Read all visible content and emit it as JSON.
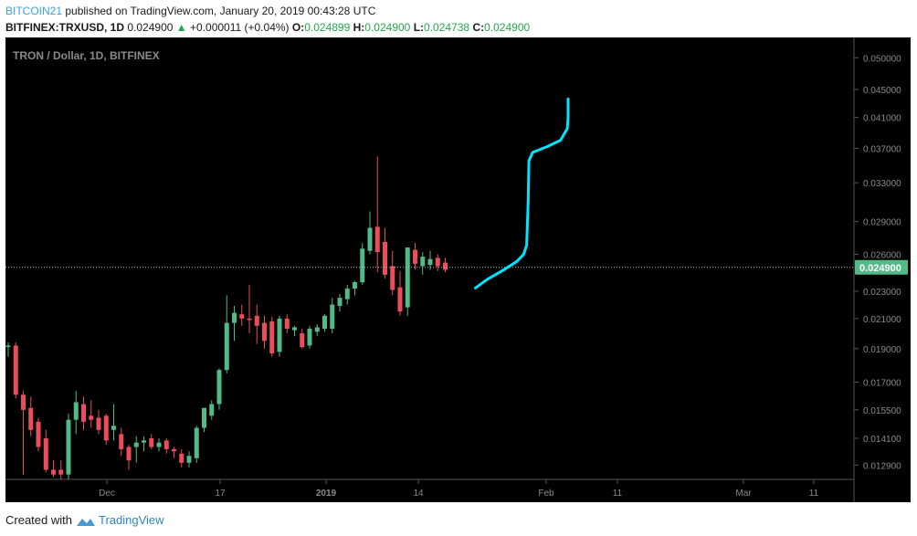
{
  "header": {
    "author": "BITCOIN21",
    "published_text": "published on TradingView.com, January 20, 2019 00:43:28 UTC",
    "symbol": "BITFINEX:TRXUSD, 1D",
    "last": "0.024900",
    "change_arrow": "▲",
    "change": "+0.000011 (+0.04%)",
    "o_label": "O:",
    "o_value": "0.024899",
    "h_label": "H:",
    "h_value": "0.024900",
    "l_label": "L:",
    "l_value": "0.024738",
    "c_label": "C:",
    "c_value": "0.024900"
  },
  "footer": {
    "created_with": "Created with",
    "brand": "TradingView"
  },
  "colors": {
    "background": "#000000",
    "up": "#53b987",
    "down": "#eb4d5c",
    "drawing": "#00e5ff",
    "price_label_bg": "#53b987",
    "axis_text": "#8a8a8a"
  },
  "chart_data": {
    "type": "candlestick",
    "title": "TRON / Dollar, 1D, BITFINEX",
    "current_price": 0.0249,
    "current_price_label": "0.024900",
    "y_scale": "log",
    "ylim": [
      0.0123,
      0.0535
    ],
    "y_ticks": [
      "0.050000",
      "0.045000",
      "0.041000",
      "0.037000",
      "0.033000",
      "0.029000",
      "0.026000",
      "0.023000",
      "0.021000",
      "0.019000",
      "0.017000",
      "0.015500",
      "0.014100",
      "0.012900"
    ],
    "x_ticks": [
      "Dec",
      "17",
      "2019",
      "14",
      "Feb",
      "11",
      "Mar",
      "11"
    ],
    "candles": [
      {
        "o": 0.0191,
        "h": 0.0194,
        "l": 0.0185,
        "c": 0.0192
      },
      {
        "o": 0.0192,
        "h": 0.0194,
        "l": 0.0161,
        "c": 0.0163
      },
      {
        "o": 0.0163,
        "h": 0.0165,
        "l": 0.0125,
        "c": 0.0155
      },
      {
        "o": 0.0156,
        "h": 0.0162,
        "l": 0.0142,
        "c": 0.0145
      },
      {
        "o": 0.0149,
        "h": 0.0151,
        "l": 0.0135,
        "c": 0.0137
      },
      {
        "o": 0.0141,
        "h": 0.0145,
        "l": 0.0126,
        "c": 0.0127
      },
      {
        "o": 0.0127,
        "h": 0.0131,
        "l": 0.0124,
        "c": 0.0125
      },
      {
        "o": 0.0127,
        "h": 0.0131,
        "l": 0.0123,
        "c": 0.0125
      },
      {
        "o": 0.0125,
        "h": 0.0153,
        "l": 0.0123,
        "c": 0.015
      },
      {
        "o": 0.015,
        "h": 0.0165,
        "l": 0.0143,
        "c": 0.0159
      },
      {
        "o": 0.0158,
        "h": 0.0162,
        "l": 0.0145,
        "c": 0.0149
      },
      {
        "o": 0.0152,
        "h": 0.016,
        "l": 0.0146,
        "c": 0.015
      },
      {
        "o": 0.0151,
        "h": 0.0155,
        "l": 0.0143,
        "c": 0.0145
      },
      {
        "o": 0.0152,
        "h": 0.0153,
        "l": 0.0138,
        "c": 0.014
      },
      {
        "o": 0.0145,
        "h": 0.0158,
        "l": 0.014,
        "c": 0.0147
      },
      {
        "o": 0.0143,
        "h": 0.0146,
        "l": 0.0133,
        "c": 0.0136
      },
      {
        "o": 0.0137,
        "h": 0.0138,
        "l": 0.0127,
        "c": 0.0131
      },
      {
        "o": 0.0137,
        "h": 0.0142,
        "l": 0.013,
        "c": 0.0139
      },
      {
        "o": 0.0139,
        "h": 0.0142,
        "l": 0.0135,
        "c": 0.014
      },
      {
        "o": 0.0141,
        "h": 0.0143,
        "l": 0.0136,
        "c": 0.0137
      },
      {
        "o": 0.0137,
        "h": 0.0141,
        "l": 0.0135,
        "c": 0.0139
      },
      {
        "o": 0.014,
        "h": 0.0141,
        "l": 0.0134,
        "c": 0.0136
      },
      {
        "o": 0.0136,
        "h": 0.0137,
        "l": 0.0132,
        "c": 0.0135
      },
      {
        "o": 0.0134,
        "h": 0.0136,
        "l": 0.0128,
        "c": 0.013
      },
      {
        "o": 0.013,
        "h": 0.0135,
        "l": 0.0128,
        "c": 0.0133
      },
      {
        "o": 0.0132,
        "h": 0.0147,
        "l": 0.013,
        "c": 0.0146
      },
      {
        "o": 0.0146,
        "h": 0.0156,
        "l": 0.0144,
        "c": 0.0156
      },
      {
        "o": 0.0152,
        "h": 0.016,
        "l": 0.015,
        "c": 0.0158
      },
      {
        "o": 0.0158,
        "h": 0.0178,
        "l": 0.0155,
        "c": 0.0177
      },
      {
        "o": 0.0177,
        "h": 0.0227,
        "l": 0.0175,
        "c": 0.0207
      },
      {
        "o": 0.0207,
        "h": 0.0219,
        "l": 0.0195,
        "c": 0.0214
      },
      {
        "o": 0.0213,
        "h": 0.022,
        "l": 0.0205,
        "c": 0.021
      },
      {
        "o": 0.021,
        "h": 0.0235,
        "l": 0.02,
        "c": 0.0209
      },
      {
        "o": 0.0212,
        "h": 0.022,
        "l": 0.0193,
        "c": 0.0205
      },
      {
        "o": 0.0207,
        "h": 0.0212,
        "l": 0.019,
        "c": 0.0195
      },
      {
        "o": 0.0208,
        "h": 0.0211,
        "l": 0.0185,
        "c": 0.0187
      },
      {
        "o": 0.0188,
        "h": 0.0212,
        "l": 0.0185,
        "c": 0.021
      },
      {
        "o": 0.021,
        "h": 0.0213,
        "l": 0.02,
        "c": 0.0203
      },
      {
        "o": 0.0202,
        "h": 0.0205,
        "l": 0.0198,
        "c": 0.0204
      },
      {
        "o": 0.02,
        "h": 0.0203,
        "l": 0.019,
        "c": 0.0191
      },
      {
        "o": 0.0192,
        "h": 0.0205,
        "l": 0.019,
        "c": 0.0203
      },
      {
        "o": 0.0201,
        "h": 0.0206,
        "l": 0.0198,
        "c": 0.0204
      },
      {
        "o": 0.0203,
        "h": 0.0213,
        "l": 0.0201,
        "c": 0.0212
      },
      {
        "o": 0.0203,
        "h": 0.0225,
        "l": 0.02,
        "c": 0.022
      },
      {
        "o": 0.0219,
        "h": 0.0228,
        "l": 0.0215,
        "c": 0.0225
      },
      {
        "o": 0.0224,
        "h": 0.0235,
        "l": 0.022,
        "c": 0.0232
      },
      {
        "o": 0.0232,
        "h": 0.0238,
        "l": 0.0227,
        "c": 0.0237
      },
      {
        "o": 0.0237,
        "h": 0.027,
        "l": 0.0235,
        "c": 0.0265
      },
      {
        "o": 0.0263,
        "h": 0.03,
        "l": 0.026,
        "c": 0.0284
      },
      {
        "o": 0.0285,
        "h": 0.036,
        "l": 0.0245,
        "c": 0.0262
      },
      {
        "o": 0.0271,
        "h": 0.0284,
        "l": 0.024,
        "c": 0.0243
      },
      {
        "o": 0.025,
        "h": 0.0263,
        "l": 0.0227,
        "c": 0.0231
      },
      {
        "o": 0.0233,
        "h": 0.0246,
        "l": 0.0212,
        "c": 0.0215
      },
      {
        "o": 0.0218,
        "h": 0.0266,
        "l": 0.0212,
        "c": 0.0266
      },
      {
        "o": 0.0264,
        "h": 0.027,
        "l": 0.0247,
        "c": 0.0252
      },
      {
        "o": 0.025,
        "h": 0.0262,
        "l": 0.0243,
        "c": 0.0258
      },
      {
        "o": 0.0251,
        "h": 0.0263,
        "l": 0.0247,
        "c": 0.0256
      },
      {
        "o": 0.0257,
        "h": 0.026,
        "l": 0.0246,
        "c": 0.025
      },
      {
        "o": 0.0253,
        "h": 0.0257,
        "l": 0.0245,
        "c": 0.0247
      }
    ],
    "projection_path": [
      {
        "i": 62.0,
        "v": 0.02325
      },
      {
        "i": 63.5,
        "v": 0.0239
      },
      {
        "i": 65.5,
        "v": 0.0246
      },
      {
        "i": 67.5,
        "v": 0.0254
      },
      {
        "i": 68.4,
        "v": 0.026
      },
      {
        "i": 68.8,
        "v": 0.0268
      },
      {
        "i": 69.0,
        "v": 0.031
      },
      {
        "i": 69.1,
        "v": 0.0355
      },
      {
        "i": 69.6,
        "v": 0.0365
      },
      {
        "i": 71.5,
        "v": 0.0372
      },
      {
        "i": 73.3,
        "v": 0.038
      },
      {
        "i": 74.2,
        "v": 0.0395
      },
      {
        "i": 74.3,
        "v": 0.041
      },
      {
        "i": 74.3,
        "v": 0.0436
      }
    ]
  }
}
